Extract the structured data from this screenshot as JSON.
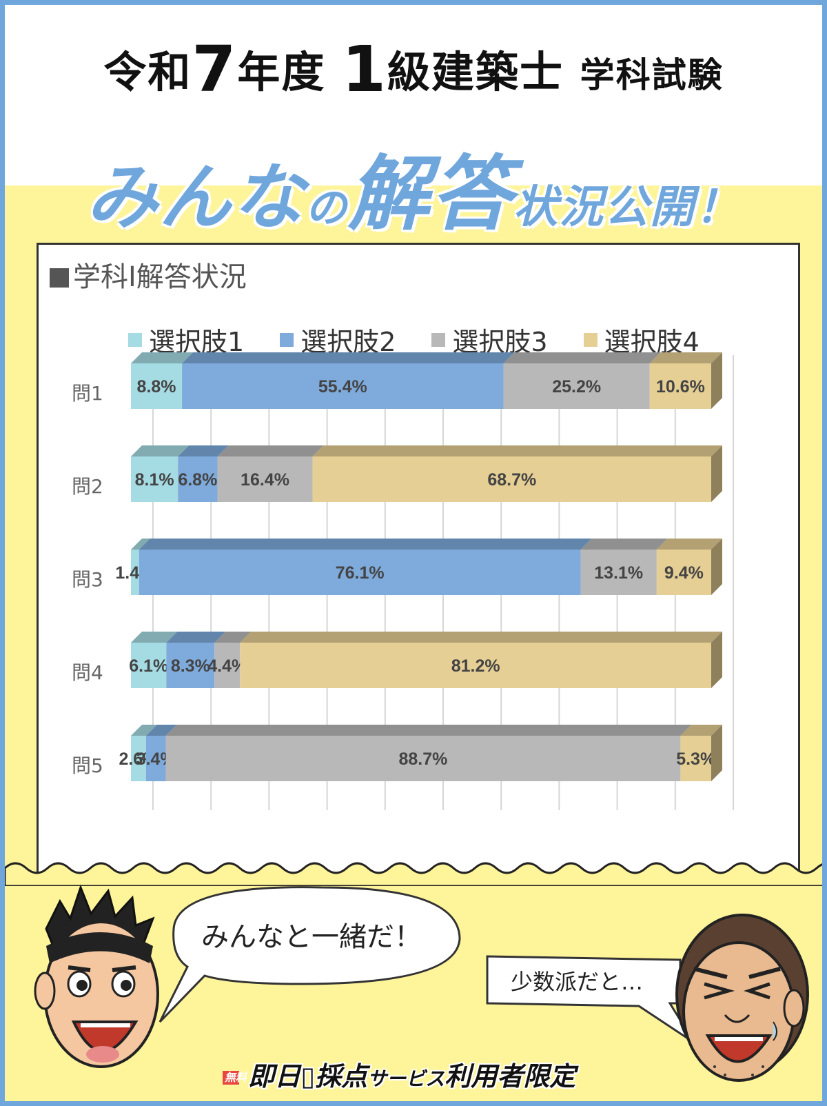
{
  "header": {
    "title_part1": "令和",
    "title_year": "7",
    "title_part2": "年度",
    "title_grade": "1",
    "title_part3": "級建築士",
    "title_part4": "学科試験",
    "subtitle_part1": "みんな",
    "subtitle_part2": "の",
    "subtitle_part3": "解答",
    "subtitle_part4": "状況公開！"
  },
  "chart_data": {
    "type": "bar",
    "orientation": "horizontal",
    "stacked": true,
    "title": "学科I解答状況",
    "categories": [
      "問1",
      "問2",
      "問3",
      "問4",
      "問5"
    ],
    "series": [
      {
        "name": "選択肢1",
        "color": "#a5dbe3",
        "values": [
          8.8,
          8.1,
          1.4,
          6.1,
          2.6
        ],
        "labels": [
          "8.8%",
          "8.1%",
          "1.4%",
          "6.1%",
          "2.6%"
        ]
      },
      {
        "name": "選択肢2",
        "color": "#7eaadc",
        "values": [
          55.4,
          6.8,
          76.1,
          8.3,
          3.4
        ],
        "labels": [
          "55.4%",
          "6.8%",
          "76.1%",
          "8.3%",
          "3.4%"
        ]
      },
      {
        "name": "選択肢3",
        "color": "#b8b8b8",
        "values": [
          25.2,
          16.4,
          13.1,
          4.4,
          88.7
        ],
        "labels": [
          "25.2%",
          "16.4%",
          "13.1%",
          "4.4%",
          "88.7%"
        ]
      },
      {
        "name": "選択肢4",
        "color": "#e6cf95",
        "values": [
          10.6,
          68.7,
          9.4,
          81.2,
          5.3
        ],
        "labels": [
          "10.6%",
          "68.7%",
          "9.4%",
          "81.2%",
          "5.3%"
        ]
      }
    ],
    "xlim": [
      0,
      100
    ],
    "grid": true,
    "legend": "top"
  },
  "bubbles": {
    "left": "みんなと一緒だ！",
    "right": "少数派だと…"
  },
  "footer": {
    "free": "無料",
    "service": "即日",
    "service2": "採点",
    "service3": "サービス",
    "service4": "利用者限定"
  }
}
